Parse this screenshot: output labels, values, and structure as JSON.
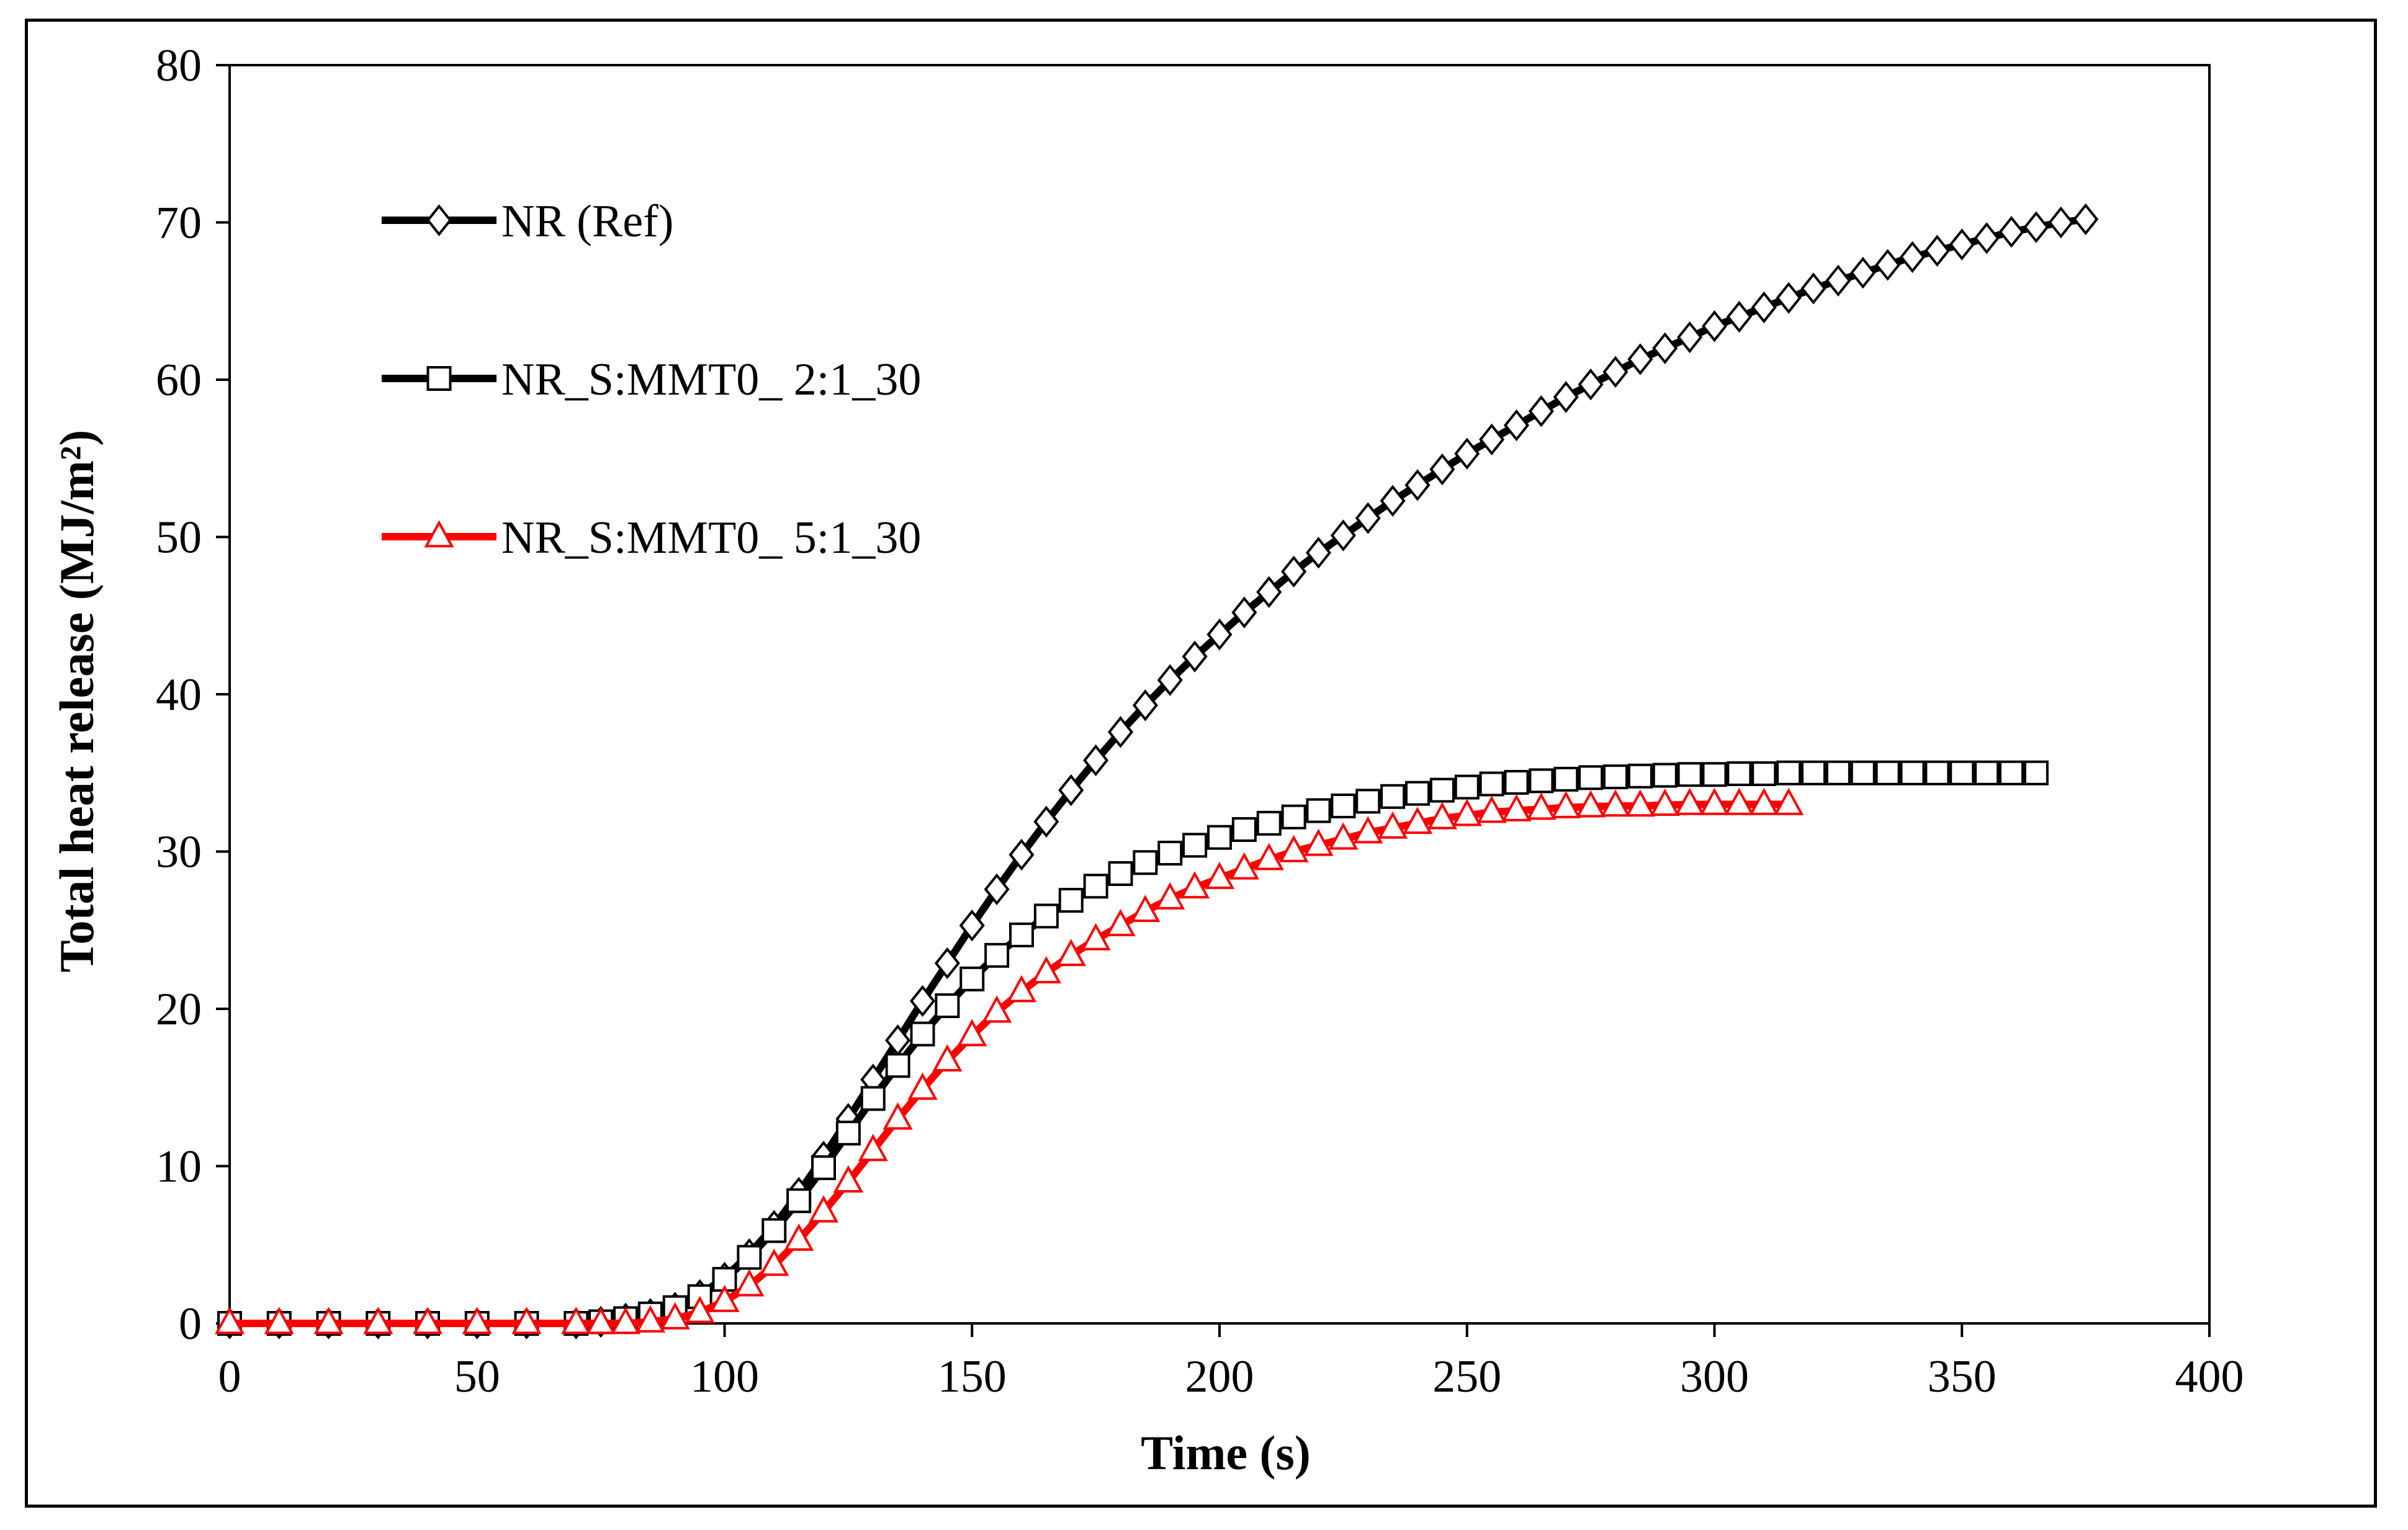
{
  "chart_data": {
    "type": "line",
    "title": "",
    "xlabel": "Time (s)",
    "ylabel": "Total heat release (MJ/m²)",
    "xlim": [
      0,
      400
    ],
    "ylim": [
      0,
      80
    ],
    "xticks": [
      0,
      50,
      100,
      150,
      200,
      250,
      300,
      350,
      400
    ],
    "yticks": [
      0,
      10,
      20,
      30,
      40,
      50,
      60,
      70,
      80
    ],
    "grid": false,
    "legend_position": "top-left",
    "series": [
      {
        "name": "NR (Ref)",
        "color": "#000000",
        "marker": "diamond",
        "x": [
          0,
          10,
          20,
          30,
          40,
          50,
          60,
          70,
          75,
          80,
          85,
          90,
          95,
          100,
          105,
          110,
          115,
          120,
          125,
          130,
          135,
          140,
          145,
          150,
          155,
          160,
          165,
          170,
          175,
          180,
          185,
          190,
          195,
          200,
          205,
          210,
          215,
          220,
          225,
          230,
          235,
          240,
          245,
          250,
          255,
          260,
          265,
          270,
          275,
          280,
          285,
          290,
          295,
          300,
          305,
          310,
          315,
          320,
          325,
          330,
          335,
          340,
          345,
          350,
          355,
          360,
          365,
          370,
          375
        ],
        "y": [
          0,
          0,
          0,
          0,
          0,
          0,
          0,
          0,
          0.1,
          0.3,
          0.6,
          1.0,
          1.8,
          2.9,
          4.4,
          6.2,
          8.3,
          10.6,
          13.0,
          15.5,
          18.0,
          20.5,
          22.9,
          25.3,
          27.6,
          29.8,
          31.9,
          33.9,
          35.8,
          37.6,
          39.3,
          40.9,
          42.4,
          43.8,
          45.2,
          46.5,
          47.8,
          49.0,
          50.1,
          51.2,
          52.3,
          53.3,
          54.3,
          55.3,
          56.2,
          57.1,
          58.0,
          58.9,
          59.7,
          60.5,
          61.3,
          62.0,
          62.7,
          63.4,
          64.0,
          64.6,
          65.2,
          65.8,
          66.3,
          66.8,
          67.3,
          67.8,
          68.2,
          68.6,
          69.0,
          69.4,
          69.7,
          70.0,
          70.2
        ]
      },
      {
        "name": "NR_S:MMT0_ 2:1_30",
        "color": "#000000",
        "marker": "square",
        "x": [
          0,
          10,
          20,
          30,
          40,
          50,
          60,
          70,
          75,
          80,
          85,
          90,
          95,
          100,
          105,
          110,
          115,
          120,
          125,
          130,
          135,
          140,
          145,
          150,
          155,
          160,
          165,
          170,
          175,
          180,
          185,
          190,
          195,
          200,
          205,
          210,
          215,
          220,
          225,
          230,
          235,
          240,
          245,
          250,
          255,
          260,
          265,
          270,
          275,
          280,
          285,
          290,
          295,
          300,
          305,
          310,
          315,
          320,
          325,
          330,
          335,
          340,
          345,
          350,
          355,
          360,
          365
        ],
        "y": [
          0,
          0,
          0,
          0,
          0,
          0,
          0,
          0,
          0.1,
          0.3,
          0.6,
          1.0,
          1.7,
          2.8,
          4.2,
          5.9,
          7.8,
          9.9,
          12.1,
          14.3,
          16.4,
          18.4,
          20.2,
          21.9,
          23.4,
          24.7,
          25.9,
          26.9,
          27.8,
          28.6,
          29.3,
          29.9,
          30.4,
          30.9,
          31.4,
          31.8,
          32.2,
          32.6,
          32.9,
          33.2,
          33.5,
          33.7,
          33.9,
          34.1,
          34.3,
          34.4,
          34.5,
          34.6,
          34.7,
          34.75,
          34.8,
          34.85,
          34.9,
          34.9,
          34.95,
          34.95,
          35.0,
          35.0,
          35.0,
          35.0,
          35.0,
          35.0,
          35.0,
          35.0,
          35.0,
          35.0,
          35.0
        ]
      },
      {
        "name": "NR_S:MMT0_ 5:1_30",
        "color": "#ff0000",
        "marker": "triangle",
        "x": [
          0,
          10,
          20,
          30,
          40,
          50,
          60,
          70,
          75,
          80,
          85,
          90,
          95,
          100,
          105,
          110,
          115,
          120,
          125,
          130,
          135,
          140,
          145,
          150,
          155,
          160,
          165,
          170,
          175,
          180,
          185,
          190,
          195,
          200,
          205,
          210,
          215,
          220,
          225,
          230,
          235,
          240,
          245,
          250,
          255,
          260,
          265,
          270,
          275,
          280,
          285,
          290,
          295,
          300,
          305,
          310,
          315
        ],
        "y": [
          0,
          0,
          0,
          0,
          0,
          0,
          0,
          0,
          0,
          0,
          0.1,
          0.3,
          0.7,
          1.4,
          2.4,
          3.7,
          5.3,
          7.1,
          9.0,
          11.0,
          13.0,
          14.9,
          16.7,
          18.3,
          19.8,
          21.1,
          22.3,
          23.4,
          24.4,
          25.3,
          26.2,
          27.0,
          27.7,
          28.3,
          28.9,
          29.5,
          30.0,
          30.4,
          30.8,
          31.2,
          31.5,
          31.8,
          32.1,
          32.3,
          32.5,
          32.6,
          32.7,
          32.8,
          32.85,
          32.9,
          32.9,
          32.95,
          33.0,
          33.0,
          33.0,
          33.0,
          33.0
        ]
      }
    ]
  }
}
